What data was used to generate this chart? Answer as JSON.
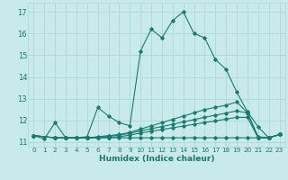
{
  "xlabel": "Humidex (Indice chaleur)",
  "bg_color": "#c8eaea",
  "grid_color": "#afd8d8",
  "line_color": "#1a7a6e",
  "xlim": [
    -0.5,
    23.5
  ],
  "ylim": [
    10.8,
    17.4
  ],
  "xticks": [
    0,
    1,
    2,
    3,
    4,
    5,
    6,
    7,
    8,
    9,
    10,
    11,
    12,
    13,
    14,
    15,
    16,
    17,
    18,
    19,
    20,
    21,
    22,
    23
  ],
  "yticks": [
    11,
    12,
    13,
    14,
    15,
    16,
    17
  ],
  "lines": [
    {
      "x": [
        0,
        1,
        2,
        3,
        4,
        5,
        6,
        7,
        8,
        9,
        10,
        11,
        12,
        13,
        14,
        15,
        16,
        17,
        18,
        19,
        20,
        21,
        22,
        23
      ],
      "y": [
        11.3,
        11.15,
        11.9,
        11.2,
        11.2,
        11.25,
        12.6,
        12.2,
        11.9,
        11.75,
        15.2,
        16.2,
        15.8,
        16.6,
        17.0,
        16.0,
        15.8,
        14.8,
        14.35,
        13.3,
        12.4,
        11.7,
        11.2,
        11.35
      ]
    },
    {
      "x": [
        0,
        2,
        3,
        4,
        5,
        6,
        7,
        8,
        9,
        10,
        11,
        12,
        13,
        14,
        15,
        16,
        17,
        18,
        19,
        20,
        21,
        22,
        23
      ],
      "y": [
        11.3,
        11.2,
        11.2,
        11.2,
        11.2,
        11.25,
        11.3,
        11.35,
        11.45,
        11.6,
        11.75,
        11.9,
        12.05,
        12.2,
        12.35,
        12.5,
        12.6,
        12.7,
        12.85,
        12.35,
        11.25,
        11.2,
        11.35
      ]
    },
    {
      "x": [
        0,
        2,
        3,
        4,
        5,
        6,
        7,
        8,
        9,
        10,
        11,
        12,
        13,
        14,
        15,
        16,
        17,
        18,
        19,
        20,
        21,
        22,
        23
      ],
      "y": [
        11.3,
        11.2,
        11.2,
        11.2,
        11.2,
        11.22,
        11.27,
        11.32,
        11.4,
        11.52,
        11.62,
        11.72,
        11.82,
        11.93,
        12.04,
        12.14,
        12.24,
        12.34,
        12.44,
        12.34,
        11.2,
        11.2,
        11.35
      ]
    },
    {
      "x": [
        0,
        2,
        3,
        4,
        5,
        6,
        7,
        8,
        9,
        10,
        11,
        12,
        13,
        14,
        15,
        16,
        17,
        18,
        19,
        20,
        21,
        22,
        23
      ],
      "y": [
        11.3,
        11.2,
        11.2,
        11.2,
        11.2,
        11.2,
        11.22,
        11.25,
        11.32,
        11.42,
        11.5,
        11.58,
        11.66,
        11.74,
        11.82,
        11.9,
        11.98,
        12.06,
        12.14,
        12.14,
        11.2,
        11.2,
        11.35
      ]
    },
    {
      "x": [
        0,
        2,
        3,
        4,
        5,
        6,
        7,
        8,
        9,
        10,
        11,
        12,
        13,
        14,
        15,
        16,
        17,
        18,
        19,
        20,
        21,
        22,
        23
      ],
      "y": [
        11.3,
        11.2,
        11.2,
        11.2,
        11.2,
        11.2,
        11.2,
        11.2,
        11.2,
        11.2,
        11.2,
        11.2,
        11.2,
        11.2,
        11.2,
        11.2,
        11.2,
        11.2,
        11.2,
        11.2,
        11.2,
        11.2,
        11.35
      ]
    }
  ]
}
